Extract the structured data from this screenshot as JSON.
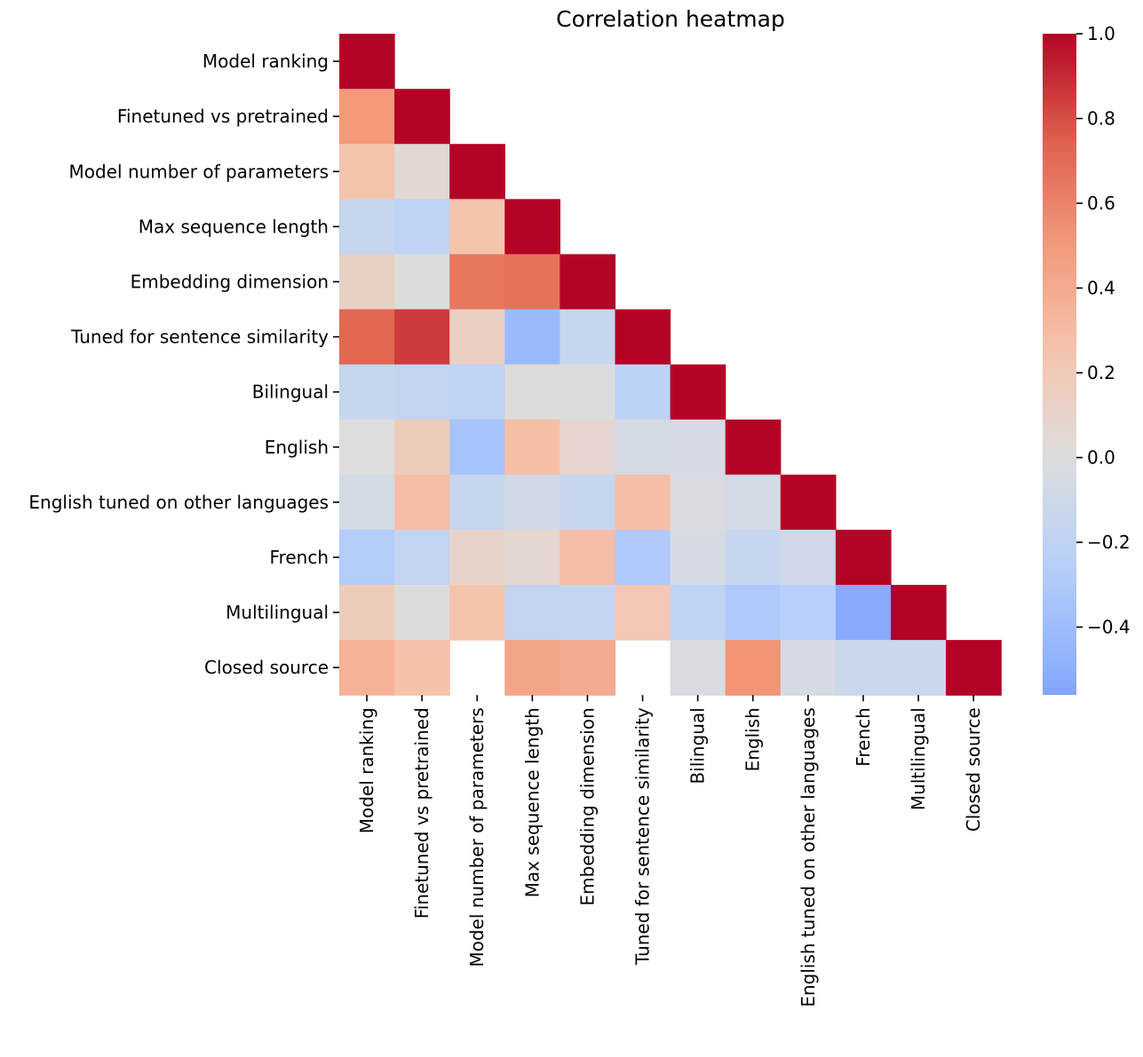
{
  "chart_data": {
    "type": "heatmap",
    "title": "Correlation heatmap",
    "xlabel": "",
    "ylabel": "",
    "mask": "upper-triangle",
    "labels": [
      "Model ranking",
      "Finetuned vs pretrained",
      "Model number of parameters",
      "Max sequence length",
      "Embedding dimension",
      "Tuned for sentence similarity",
      "Bilingual",
      "English",
      "English tuned on other languages",
      "French",
      "Multilingual",
      "Closed source"
    ],
    "matrix": [
      [
        1.0
      ],
      [
        0.5,
        1.0
      ],
      [
        0.25,
        0.05,
        1.0
      ],
      [
        -0.15,
        -0.2,
        0.25,
        1.0
      ],
      [
        0.13,
        0.01,
        0.65,
        0.67,
        1.0
      ],
      [
        0.72,
        0.85,
        0.14,
        -0.42,
        -0.15,
        1.0
      ],
      [
        -0.15,
        -0.17,
        -0.2,
        0.02,
        -0.01,
        -0.22,
        1.0
      ],
      [
        0.0,
        0.17,
        -0.35,
        0.28,
        0.08,
        -0.06,
        -0.05,
        1.0
      ],
      [
        -0.06,
        0.29,
        -0.15,
        -0.08,
        -0.14,
        0.28,
        -0.03,
        -0.07,
        1.0
      ],
      [
        -0.27,
        -0.18,
        0.1,
        0.07,
        0.29,
        -0.3,
        -0.05,
        -0.15,
        -0.1,
        1.0
      ],
      [
        0.17,
        0.01,
        0.25,
        -0.18,
        -0.16,
        0.22,
        -0.2,
        -0.3,
        -0.25,
        -0.53,
        1.0
      ],
      [
        0.36,
        0.26,
        null,
        0.43,
        0.4,
        null,
        -0.03,
        0.52,
        -0.05,
        -0.12,
        -0.12,
        1.0
      ]
    ],
    "colormap": "coolwarm",
    "vmin": -0.56,
    "vmax": 1.0,
    "colorbar": {
      "ticks": [
        1.0,
        0.8,
        0.6,
        0.4,
        0.2,
        0.0,
        -0.2,
        -0.4
      ],
      "tick_labels": [
        "1.0",
        "0.8",
        "0.6",
        "0.4",
        "0.2",
        "0.0",
        "−0.2",
        "−0.4"
      ],
      "placement": "right"
    },
    "grid": false
  }
}
